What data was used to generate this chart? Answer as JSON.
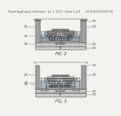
{
  "bg_color": "#f2f2ee",
  "header_text": "Patent Application Publication   Jul. 1, 2014   Sheet 2 of 8       US 2014/0183618 A1",
  "fig2_label": "FIG. 2",
  "fig3_label": "FIG. 3",
  "layer_colors": {
    "si_substrate": "#d0d0d0",
    "buffer": "#c8c8c4",
    "qw_channel": "#c0ccd8",
    "active_tunnel": "#b8c4d0",
    "barrier": "#b0bccc",
    "il": "#c8c8c8",
    "gate_dielectric": "#d0d8e0",
    "gate_metal": "#909090",
    "spacer": "#b8b8b8",
    "metal_pillar": "#a0a0a0",
    "metal_pillar_dark": "#888888",
    "cap_region": "#c0c8d0",
    "conformal_sd": "#b0b8c0",
    "hardmask": "#d8d8d8",
    "ild": "#e8e8e8",
    "outline": "#333333"
  },
  "lw": 0.35
}
